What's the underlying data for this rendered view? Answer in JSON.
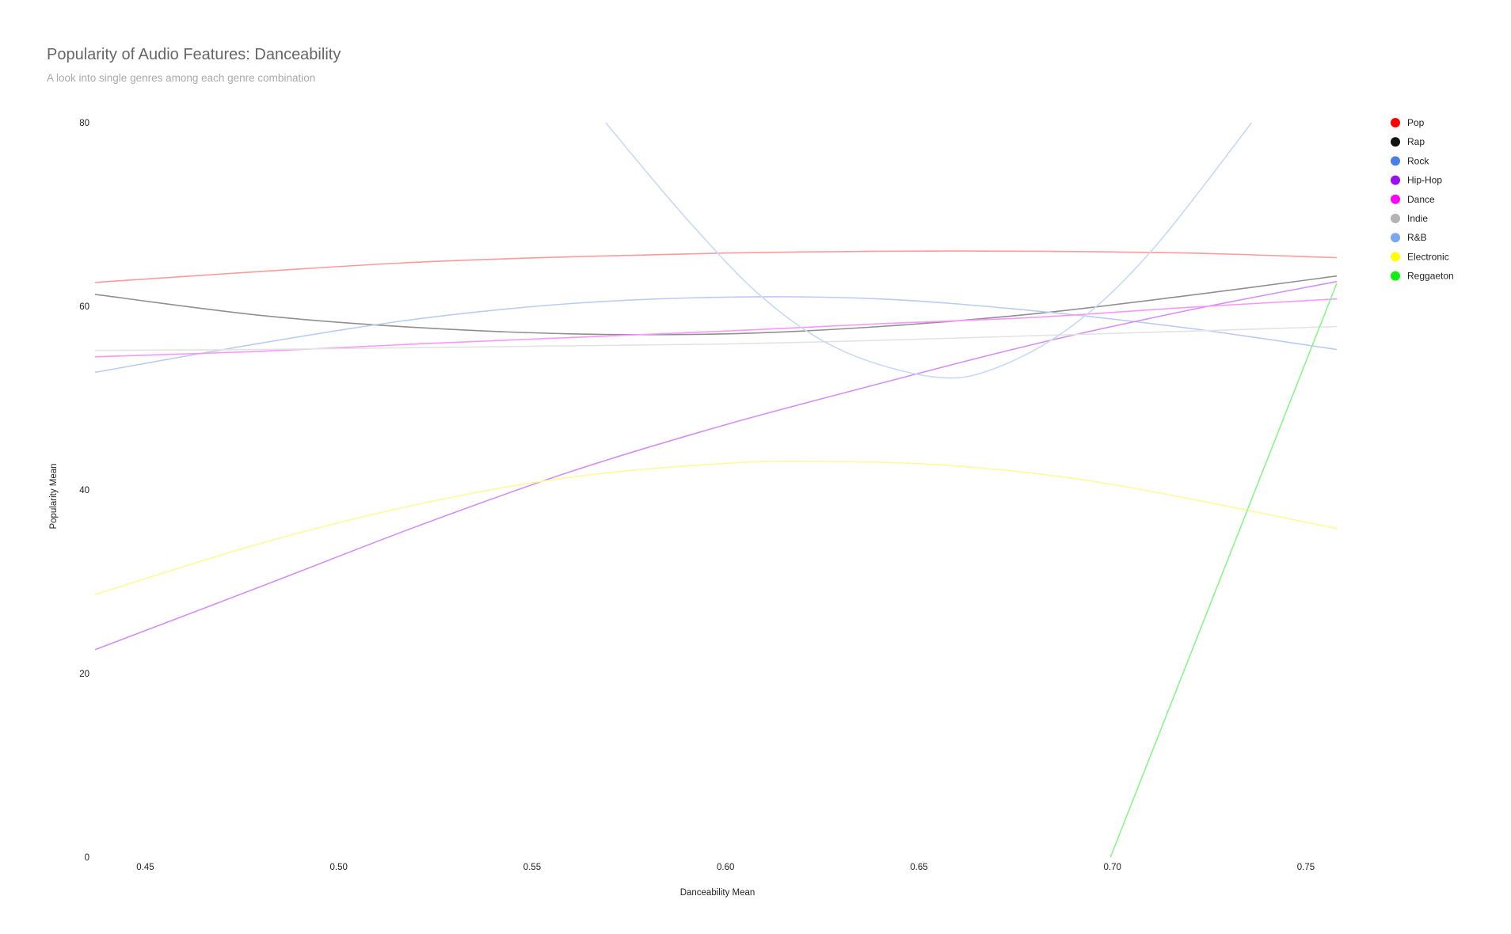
{
  "chart_data": {
    "type": "line",
    "title": "Popularity of Audio Features: Danceability",
    "subtitle": "A look into single genres among each genre combination",
    "xlabel": "Danceability Mean",
    "ylabel": "Popularity Mean",
    "xlim": [
      0.437,
      0.758
    ],
    "ylim": [
      0,
      80
    ],
    "x_ticks": [
      "0.45",
      "0.50",
      "0.55",
      "0.60",
      "0.65",
      "0.70",
      "0.75"
    ],
    "y_ticks": [
      "0",
      "20",
      "40",
      "60",
      "80"
    ],
    "grid": false,
    "legend_position": "top-right",
    "series": [
      {
        "name": "Pop",
        "color": "#ff0000",
        "line_color": "#ff9a9a",
        "x": [
          0.437,
          0.48,
          0.52,
          0.56,
          0.6,
          0.64,
          0.68,
          0.72,
          0.758
        ],
        "y": [
          62.6,
          63.8,
          64.8,
          65.4,
          65.8,
          66.0,
          66.0,
          65.8,
          65.3
        ]
      },
      {
        "name": "Rap",
        "color": "#111111",
        "line_color": "#8f8f8f",
        "x": [
          0.437,
          0.48,
          0.52,
          0.56,
          0.6,
          0.64,
          0.68,
          0.72,
          0.758
        ],
        "y": [
          61.3,
          59.0,
          57.7,
          57.0,
          57.0,
          57.8,
          59.2,
          61.2,
          63.3
        ]
      },
      {
        "name": "Rock",
        "color": "#4a7fea",
        "line_color": "#b9ccf2",
        "x": [
          0.437,
          0.48,
          0.52,
          0.56,
          0.6,
          0.64,
          0.68,
          0.72,
          0.758
        ],
        "y": [
          52.8,
          56.0,
          58.6,
          60.3,
          61.0,
          60.8,
          59.5,
          57.6,
          55.3
        ]
      },
      {
        "name": "Hip-Hop",
        "color": "#9b10f0",
        "line_color": "#d58ef5",
        "x": [
          0.437,
          0.48,
          0.52,
          0.56,
          0.6,
          0.64,
          0.68,
          0.72,
          0.758
        ],
        "y": [
          22.6,
          29.5,
          36.0,
          42.0,
          47.1,
          51.6,
          55.9,
          59.6,
          62.7
        ]
      },
      {
        "name": "Dance",
        "color": "#ff00ff",
        "line_color": "#fb96fb",
        "x": [
          0.437,
          0.48,
          0.52,
          0.56,
          0.6,
          0.64,
          0.68,
          0.72,
          0.758
        ],
        "y": [
          54.5,
          55.1,
          55.9,
          56.6,
          57.3,
          58.1,
          58.8,
          59.9,
          60.8
        ]
      },
      {
        "name": "Indie",
        "color": "#b4b4b4",
        "line_color": "#e3e3e3",
        "x": [
          0.437,
          0.48,
          0.52,
          0.56,
          0.6,
          0.64,
          0.68,
          0.72,
          0.758
        ],
        "y": [
          55.2,
          55.3,
          55.5,
          55.7,
          55.9,
          56.3,
          56.8,
          57.3,
          57.8
        ]
      },
      {
        "name": "R&B",
        "color": "#7aa7ee",
        "line_color": "#c6d9f5",
        "x": [
          0.569,
          0.59,
          0.61,
          0.63,
          0.654,
          0.67,
          0.69,
          0.71,
          0.736
        ],
        "y": [
          80.0,
          69.5,
          60.8,
          55.2,
          52.3,
          53.3,
          58.0,
          66.0,
          80.0
        ]
      },
      {
        "name": "Electronic",
        "color": "#ffff00",
        "line_color": "#fbfb99",
        "x": [
          0.437,
          0.48,
          0.52,
          0.56,
          0.6,
          0.625,
          0.66,
          0.7,
          0.758
        ],
        "y": [
          28.6,
          34.2,
          38.4,
          41.4,
          42.9,
          43.1,
          42.6,
          40.6,
          35.8
        ]
      },
      {
        "name": "Reggaeton",
        "color": "#11ee11",
        "line_color": "#8af58a",
        "x": [
          0.6995,
          0.758
        ],
        "y": [
          0.0,
          62.5
        ]
      }
    ]
  }
}
